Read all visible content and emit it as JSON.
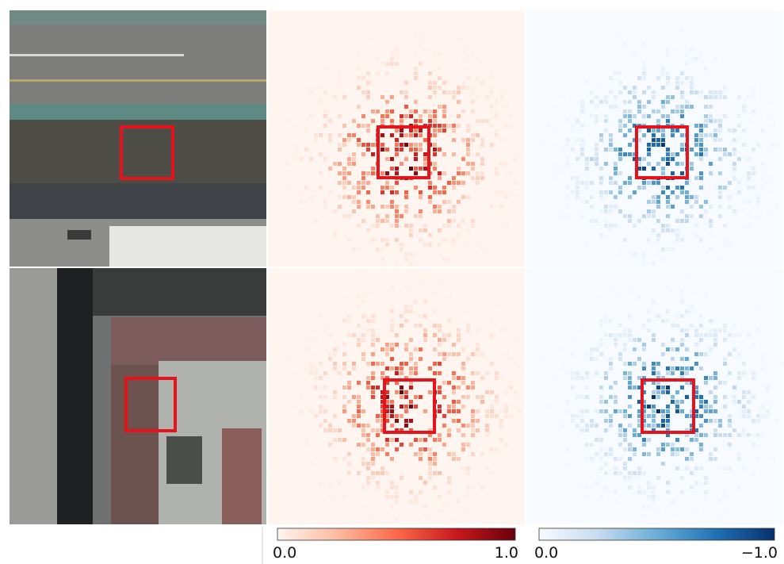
{
  "colorbars": [
    {
      "min_label": "0.0",
      "max_label": "1.0",
      "colors": [
        "#fff5f0",
        "#fcbba1",
        "#fb6a4a",
        "#cb181d",
        "#67000d"
      ]
    },
    {
      "min_label": "0.0",
      "max_label": "−1.0",
      "colors": [
        "#f7fbff",
        "#c6dbef",
        "#6baed6",
        "#2171b5",
        "#08306b"
      ]
    }
  ]
}
